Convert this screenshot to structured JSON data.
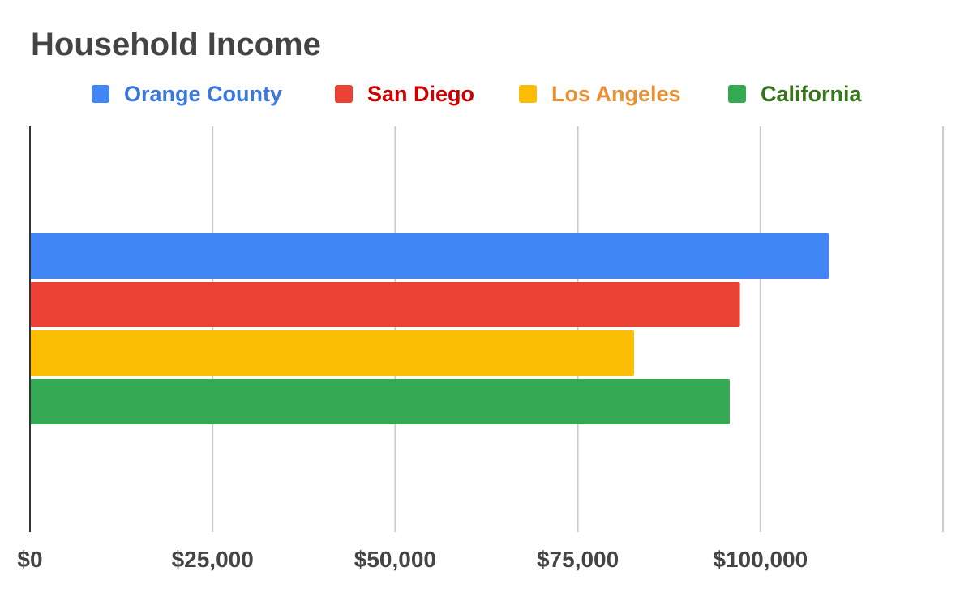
{
  "chart_data": {
    "type": "bar",
    "orientation": "horizontal",
    "title": "Household Income",
    "categories": [
      ""
    ],
    "series": [
      {
        "name": "Orange County",
        "values": [
          109400
        ],
        "color": "#4285F4",
        "label_color": "#3A78E0"
      },
      {
        "name": "San Diego",
        "values": [
          97200
        ],
        "color": "#EA4335",
        "label_color": "#CC0000"
      },
      {
        "name": "Los Angeles",
        "values": [
          82700
        ],
        "color": "#FBBC04",
        "label_color": "#E69138"
      },
      {
        "name": "California",
        "values": [
          95800
        ],
        "color": "#34A853",
        "label_color": "#38761D"
      }
    ],
    "xlim": [
      0,
      125000
    ],
    "x_ticks": [
      0,
      25000,
      50000,
      75000,
      100000,
      125000
    ],
    "x_tick_labels": [
      "$0",
      "$25,000",
      "$50,000",
      "$75,000",
      "$100,000",
      ""
    ],
    "xlabel": "",
    "ylabel": "",
    "grid": true,
    "legend_position": "top"
  }
}
